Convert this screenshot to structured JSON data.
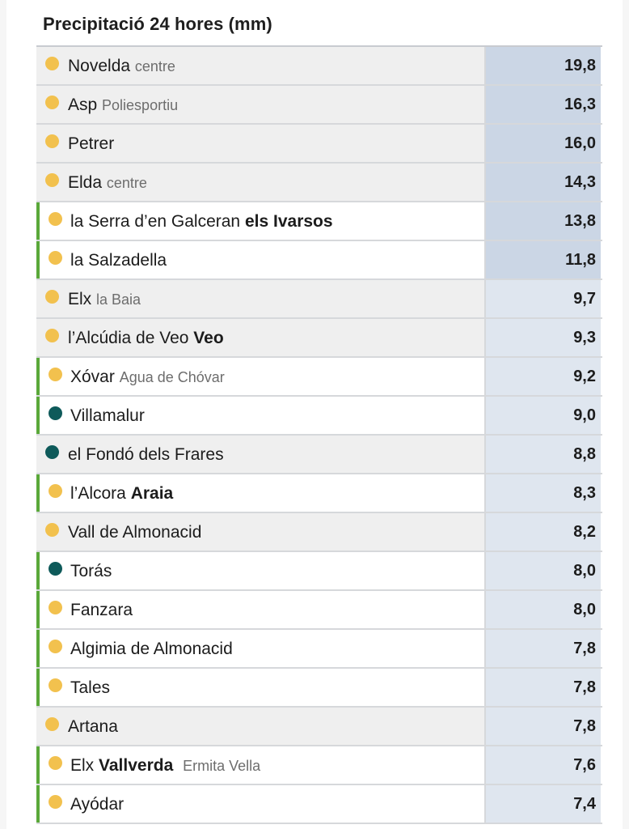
{
  "title": "Precipitació 24 hores (mm)",
  "colors": {
    "dot_yellow": "#f2c14e",
    "dot_teal": "#0e5a5a",
    "green_bar": "#5aa83a",
    "value_dark": "#cbd6e5",
    "value_light": "#dfe6ef"
  },
  "rows": [
    {
      "name": "Novelda",
      "sub": "centre",
      "bold": "",
      "sub2": "",
      "value": "19,8",
      "dot": "yellow",
      "bg": "grey",
      "green": false,
      "shade": "dark"
    },
    {
      "name": "Asp",
      "sub": "Poliesportiu",
      "bold": "",
      "sub2": "",
      "value": "16,3",
      "dot": "yellow",
      "bg": "grey",
      "green": false,
      "shade": "dark"
    },
    {
      "name": "Petrer",
      "sub": "",
      "bold": "",
      "sub2": "",
      "value": "16,0",
      "dot": "yellow",
      "bg": "grey",
      "green": false,
      "shade": "dark"
    },
    {
      "name": "Elda",
      "sub": "centre",
      "bold": "",
      "sub2": "",
      "value": "14,3",
      "dot": "yellow",
      "bg": "grey",
      "green": false,
      "shade": "dark"
    },
    {
      "name": "la Serra d’en Galceran",
      "sub": "",
      "bold": "els Ivarsos",
      "sub2": "",
      "value": "13,8",
      "dot": "yellow",
      "bg": "white",
      "green": true,
      "shade": "dark"
    },
    {
      "name": "la Salzadella",
      "sub": "",
      "bold": "",
      "sub2": "",
      "value": "11,8",
      "dot": "yellow",
      "bg": "white",
      "green": true,
      "shade": "dark"
    },
    {
      "name": "Elx",
      "sub": "la Baia",
      "bold": "",
      "sub2": "",
      "value": "9,7",
      "dot": "yellow",
      "bg": "grey",
      "green": false,
      "shade": "light"
    },
    {
      "name": "l’Alcúdia de Veo",
      "sub": "",
      "bold": "Veo",
      "sub2": "",
      "value": "9,3",
      "dot": "yellow",
      "bg": "grey",
      "green": false,
      "shade": "light"
    },
    {
      "name": "Xóvar",
      "sub": "Agua de Chóvar",
      "bold": "",
      "sub2": "",
      "value": "9,2",
      "dot": "yellow",
      "bg": "white",
      "green": true,
      "shade": "light"
    },
    {
      "name": "Villamalur",
      "sub": "",
      "bold": "",
      "sub2": "",
      "value": "9,0",
      "dot": "teal",
      "bg": "white",
      "green": true,
      "shade": "light"
    },
    {
      "name": "el Fondó dels Frares",
      "sub": "",
      "bold": "",
      "sub2": "",
      "value": "8,8",
      "dot": "teal",
      "bg": "grey",
      "green": false,
      "shade": "light"
    },
    {
      "name": "l’Alcora",
      "sub": "",
      "bold": "Araia",
      "sub2": "",
      "value": "8,3",
      "dot": "yellow",
      "bg": "white",
      "green": true,
      "shade": "light"
    },
    {
      "name": "Vall de Almonacid",
      "sub": "",
      "bold": "",
      "sub2": "",
      "value": "8,2",
      "dot": "yellow",
      "bg": "grey",
      "green": false,
      "shade": "light"
    },
    {
      "name": "Torás",
      "sub": "",
      "bold": "",
      "sub2": "",
      "value": "8,0",
      "dot": "teal",
      "bg": "white",
      "green": true,
      "shade": "light"
    },
    {
      "name": "Fanzara",
      "sub": "",
      "bold": "",
      "sub2": "",
      "value": "8,0",
      "dot": "yellow",
      "bg": "white",
      "green": true,
      "shade": "light"
    },
    {
      "name": "Algimia de Almonacid",
      "sub": "",
      "bold": "",
      "sub2": "",
      "value": "7,8",
      "dot": "yellow",
      "bg": "white",
      "green": true,
      "shade": "light"
    },
    {
      "name": "Tales",
      "sub": "",
      "bold": "",
      "sub2": "",
      "value": "7,8",
      "dot": "yellow",
      "bg": "white",
      "green": true,
      "shade": "light"
    },
    {
      "name": "Artana",
      "sub": "",
      "bold": "",
      "sub2": "",
      "value": "7,8",
      "dot": "yellow",
      "bg": "grey",
      "green": false,
      "shade": "light"
    },
    {
      "name": "Elx",
      "sub": "",
      "bold": "Vallverda",
      "sub2": "Ermita Vella",
      "value": "7,6",
      "dot": "yellow",
      "bg": "white",
      "green": true,
      "shade": "light"
    },
    {
      "name": "Ayódar",
      "sub": "",
      "bold": "",
      "sub2": "",
      "value": "7,4",
      "dot": "yellow",
      "bg": "white",
      "green": true,
      "shade": "light"
    }
  ]
}
